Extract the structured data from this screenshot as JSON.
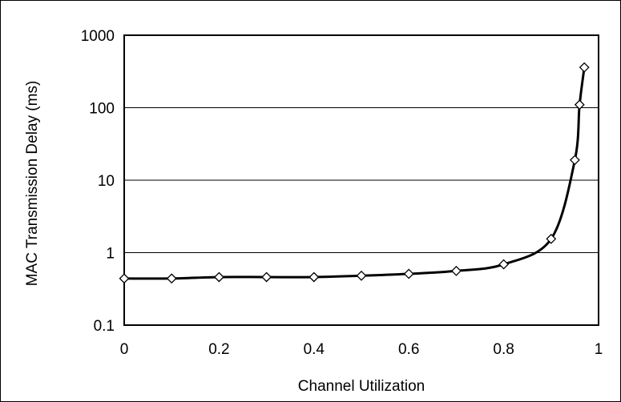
{
  "chart_data": {
    "type": "line",
    "title": "",
    "xlabel": "Channel Utilization",
    "ylabel": "MAC Transmission Delay (ms)",
    "xlim": [
      0,
      1
    ],
    "ylim": [
      0.1,
      1000
    ],
    "y_scale": "log",
    "grid": "horizontal major gridlines",
    "legend": "none",
    "x_ticks": [
      "0",
      "0.2",
      "0.4",
      "0.6",
      "0.8",
      "1"
    ],
    "y_ticks": [
      "0.1",
      "1",
      "10",
      "100",
      "1000"
    ],
    "series": [
      {
        "marker": "open-diamond",
        "color": "#000000",
        "x": [
          0.0,
          0.1,
          0.2,
          0.3,
          0.4,
          0.5,
          0.6,
          0.7,
          0.8,
          0.9,
          0.95,
          0.96,
          0.97
        ],
        "y": [
          0.44,
          0.44,
          0.46,
          0.46,
          0.46,
          0.48,
          0.51,
          0.56,
          0.69,
          1.55,
          19,
          110,
          360
        ]
      }
    ]
  }
}
